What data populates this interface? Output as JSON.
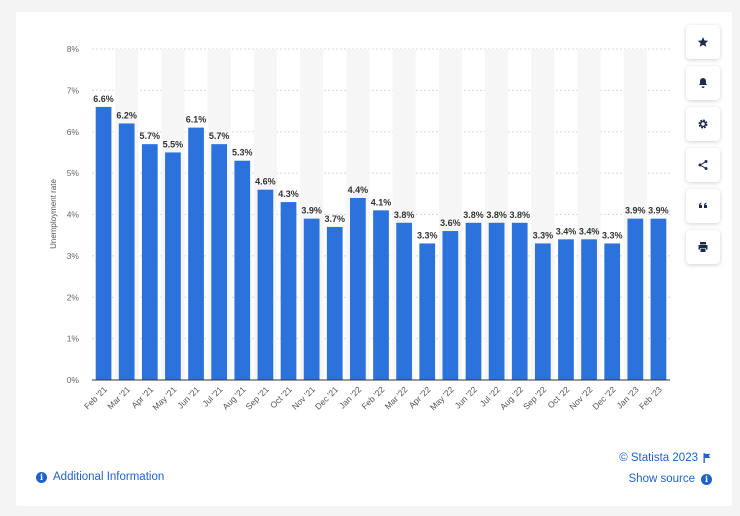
{
  "chart_data": {
    "type": "bar",
    "ylabel": "Unemployment rate",
    "xlabel": "",
    "ylim": [
      0,
      8
    ],
    "yticks": [
      "0%",
      "1%",
      "2%",
      "3%",
      "4%",
      "5%",
      "6%",
      "7%",
      "8%"
    ],
    "categories": [
      "Feb '21",
      "Mar '21",
      "Apr '21",
      "May '21",
      "Jun '21",
      "Jul '21",
      "Aug '21",
      "Sep '21",
      "Oct '21",
      "Nov '21",
      "Dec '21",
      "Jan '22",
      "Feb '22",
      "Mar '22",
      "Apr '22",
      "May '22",
      "Jun '22",
      "Jul '22",
      "Aug '22",
      "Sep '22",
      "Oct '22",
      "Nov '22",
      "Dec '22",
      "Jan '23",
      "Feb '23"
    ],
    "values": [
      6.6,
      6.2,
      5.7,
      5.5,
      6.1,
      5.7,
      5.3,
      4.6,
      4.3,
      3.9,
      3.7,
      4.4,
      4.1,
      3.8,
      3.3,
      3.6,
      3.8,
      3.8,
      3.8,
      3.3,
      3.4,
      3.4,
      3.3,
      3.9,
      3.9
    ],
    "value_labels": [
      "6.6%",
      "6.2%",
      "5.7%",
      "5.5%",
      "6.1%",
      "5.7%",
      "5.3%",
      "4.6%",
      "4.3%",
      "3.9%",
      "3.7%",
      "4.4%",
      "4.1%",
      "3.8%",
      "3.3%",
      "3.6%",
      "3.8%",
      "3.8%",
      "3.8%",
      "3.3%",
      "3.4%",
      "3.4%",
      "3.3%",
      "3.9%",
      "3.9%"
    ],
    "bar_color": "#2b72dd",
    "grid": true
  },
  "footer": {
    "additional_info": "Additional Information",
    "credit": "© Statista 2023",
    "show_source": "Show source"
  },
  "toolbar": {
    "icons": [
      "star-icon",
      "bell-icon",
      "gear-icon",
      "share-icon",
      "quote-icon",
      "print-icon"
    ]
  }
}
